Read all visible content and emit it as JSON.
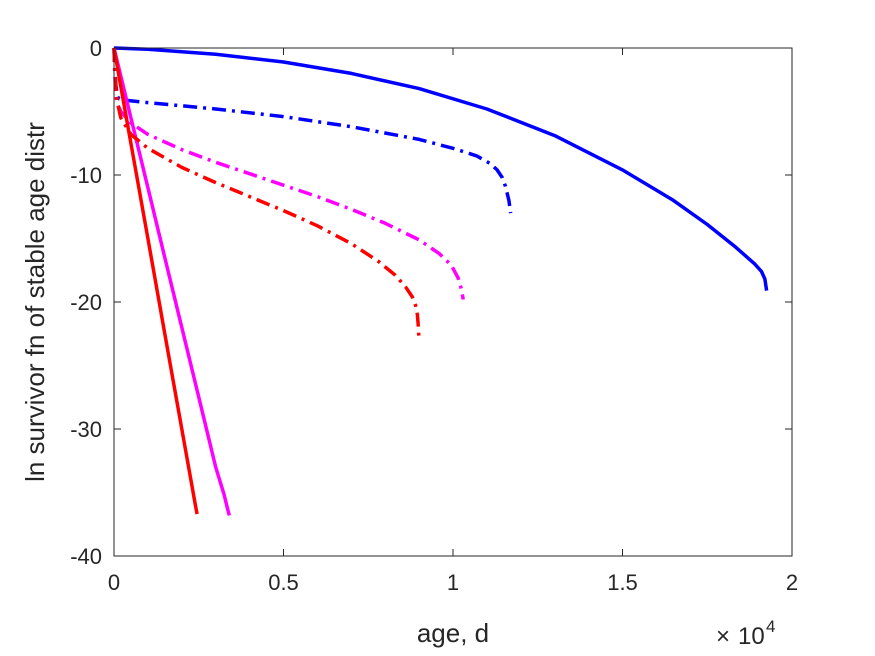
{
  "chart_data": {
    "type": "line",
    "title": "",
    "xlabel": "age, d",
    "ylabel": "ln survivor fn of stable age distr",
    "x_multiplier": {
      "base": "10",
      "exponent": "4"
    },
    "xlim": [
      0,
      20000
    ],
    "ylim": [
      -40,
      0
    ],
    "xticks": [
      0,
      5000,
      10000,
      15000,
      20000
    ],
    "xtick_labels": [
      "0",
      "0.5",
      "1",
      "1.5",
      "2"
    ],
    "yticks": [
      0,
      -10,
      -20,
      -30,
      -40
    ],
    "ytick_labels": [
      "0",
      "-10",
      "-20",
      "-30",
      "-40"
    ],
    "grid": false,
    "box": true,
    "series": [
      {
        "color": "#0000ff",
        "style": "solid",
        "x": [
          0,
          1000,
          3000,
          5000,
          7000,
          9000,
          11000,
          13000,
          15000,
          16500,
          17500,
          18300,
          18900,
          19100,
          19200,
          19250
        ],
        "y": [
          0,
          -0.1,
          -0.5,
          -1.1,
          -2.0,
          -3.2,
          -4.8,
          -6.9,
          -9.6,
          -12.0,
          -13.9,
          -15.6,
          -17.0,
          -17.6,
          -18.2,
          -19.1
        ]
      },
      {
        "color": "#0000ff",
        "style": "dashdot",
        "x": [
          0,
          20,
          60,
          100,
          150,
          300,
          1000,
          3000,
          5000,
          7000,
          9000,
          10000,
          10700,
          11100,
          11300,
          11450,
          11550,
          11650,
          11700
        ],
        "y": [
          0,
          -1.5,
          -3.0,
          -3.8,
          -4.0,
          -4.1,
          -4.3,
          -4.8,
          -5.4,
          -6.2,
          -7.2,
          -7.9,
          -8.5,
          -9.1,
          -9.6,
          -10.2,
          -10.9,
          -12.0,
          -13.0
        ]
      },
      {
        "color": "#ff00ff",
        "style": "solid",
        "x": [
          0,
          500,
          1000,
          1500,
          2000,
          2500,
          3000,
          3250,
          3350,
          3400
        ],
        "y": [
          0,
          -5.5,
          -11.0,
          -16.5,
          -22.0,
          -27.5,
          -33.0,
          -35.2,
          -36.3,
          -36.8
        ]
      },
      {
        "color": "#ff00ff",
        "style": "dashdot",
        "x": [
          0,
          20,
          60,
          100,
          200,
          500,
          1000,
          2000,
          3000,
          4000,
          5000,
          6000,
          7000,
          8000,
          9000,
          9600,
          9950,
          10150,
          10250,
          10300
        ],
        "y": [
          0,
          -2.0,
          -3.8,
          -4.4,
          -5.0,
          -5.9,
          -6.8,
          -8.0,
          -9.0,
          -9.9,
          -10.8,
          -11.7,
          -12.7,
          -13.8,
          -15.1,
          -16.2,
          -17.1,
          -18.1,
          -19.0,
          -19.8
        ]
      },
      {
        "color": "#ff0000",
        "style": "solid",
        "x": [
          0,
          500,
          1000,
          1500,
          2000,
          2300,
          2400,
          2450
        ],
        "y": [
          0,
          -7.5,
          -15.0,
          -22.5,
          -30.0,
          -34.5,
          -36.0,
          -36.7
        ]
      },
      {
        "color": "#ff0000",
        "style": "dashdot",
        "x": [
          0,
          20,
          60,
          100,
          200,
          500,
          1000,
          2000,
          3000,
          4000,
          5000,
          6000,
          7000,
          7800,
          8300,
          8600,
          8800,
          8900,
          8950,
          8980,
          9000
        ],
        "y": [
          0,
          -1.5,
          -3.3,
          -4.3,
          -5.5,
          -6.8,
          -7.9,
          -9.4,
          -10.6,
          -11.7,
          -12.8,
          -14.0,
          -15.4,
          -16.8,
          -17.9,
          -18.8,
          -19.6,
          -20.3,
          -21.0,
          -22.0,
          -23.1
        ]
      }
    ]
  }
}
